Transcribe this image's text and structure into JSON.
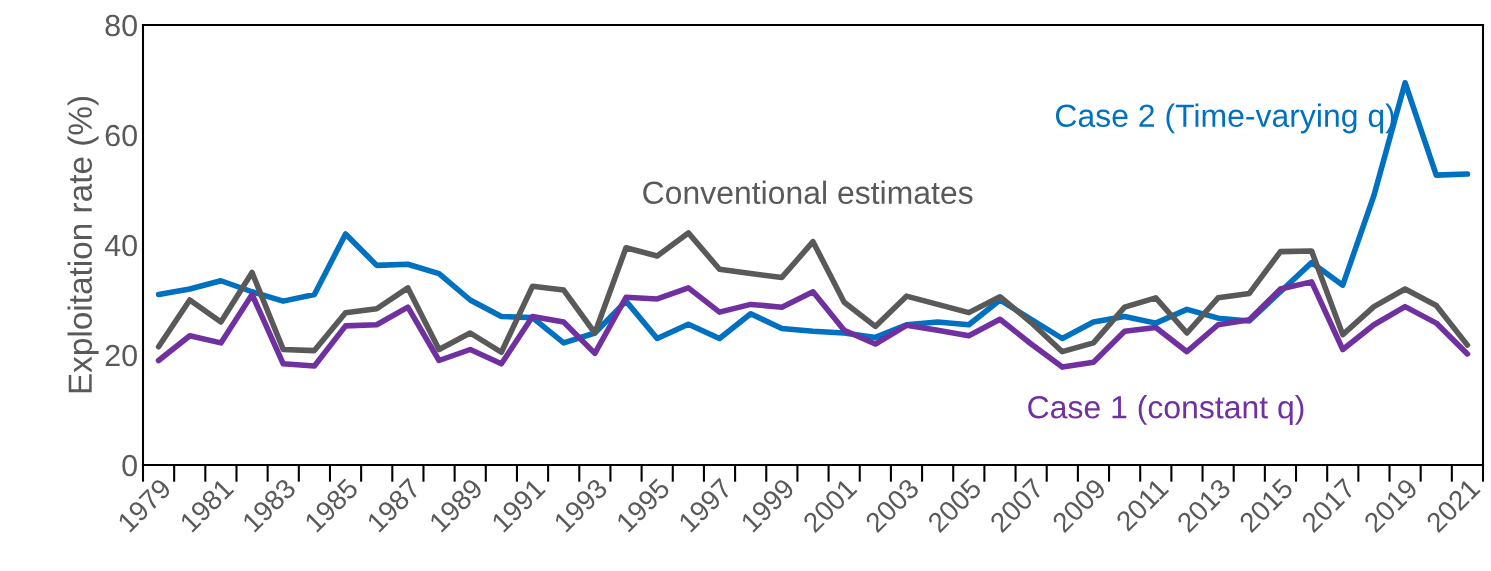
{
  "chart_data": {
    "type": "line",
    "ylabel": "Exploitation rate (%)",
    "categories": [
      "1979",
      null,
      "1981",
      null,
      "1983",
      null,
      "1985",
      null,
      "1987",
      null,
      "1989",
      null,
      "1991",
      null,
      "1993",
      null,
      "1995",
      null,
      "1997",
      null,
      "1999",
      null,
      "2001",
      null,
      "2003",
      null,
      "2005",
      null,
      "2007",
      null,
      "2009",
      null,
      "2011",
      null,
      "2013",
      null,
      "2015",
      null,
      "2017",
      null,
      "2019",
      null,
      "2021"
    ],
    "ylim": [
      0,
      80
    ],
    "yticks": [
      0,
      20,
      40,
      60,
      80
    ],
    "grid": false,
    "legend": false,
    "marker": "none",
    "line_style": "solid",
    "series": [
      {
        "name": "Case 2 (Time-varying q)",
        "color": "#0070c0",
        "values": [
          31,
          32,
          33.5,
          31.5,
          29.8,
          31,
          42,
          36.3,
          36.5,
          34.8,
          30,
          27,
          26.8,
          22.2,
          24,
          29.8,
          23,
          25.6,
          23,
          27.5,
          24.8,
          24.3,
          24,
          23.2,
          25.5,
          26,
          25.5,
          30,
          26.5,
          23,
          26,
          27,
          25.8,
          28.3,
          26.7,
          26.2,
          31.5,
          36.8,
          32.7,
          49,
          69.5,
          52.7,
          52.9
        ]
      },
      {
        "name": "Conventional estimates",
        "color": "#595959",
        "values": [
          21.5,
          30,
          26,
          35,
          21,
          20.8,
          27.7,
          28.4,
          32.2,
          21,
          24,
          20.5,
          32.5,
          31.8,
          24,
          39.5,
          38,
          42.2,
          35.6,
          34.8,
          34.1,
          40.6,
          29.6,
          25.2,
          30.7,
          29.2,
          27.7,
          30.6,
          25.9,
          20.6,
          22.2,
          28.7,
          30.4,
          24,
          30.4,
          31.2,
          38.8,
          38.9,
          23.7,
          28.8,
          32,
          29,
          21.8
        ]
      },
      {
        "name": "Case 1 (constant q)",
        "color": "#7030a0",
        "values": [
          19,
          23.5,
          22.2,
          31,
          18.4,
          18,
          25.3,
          25.5,
          28.7,
          19,
          21,
          18.4,
          27,
          26,
          20.3,
          30.5,
          30.2,
          32.2,
          27.8,
          29.2,
          28.7,
          31.5,
          24.5,
          22,
          25.4,
          24.5,
          23.5,
          26.5,
          22,
          17.8,
          18.7,
          24.3,
          25,
          20.6,
          25.5,
          26.4,
          32,
          33.3,
          21,
          25.5,
          28.8,
          25.8,
          20.2
        ]
      }
    ]
  }
}
